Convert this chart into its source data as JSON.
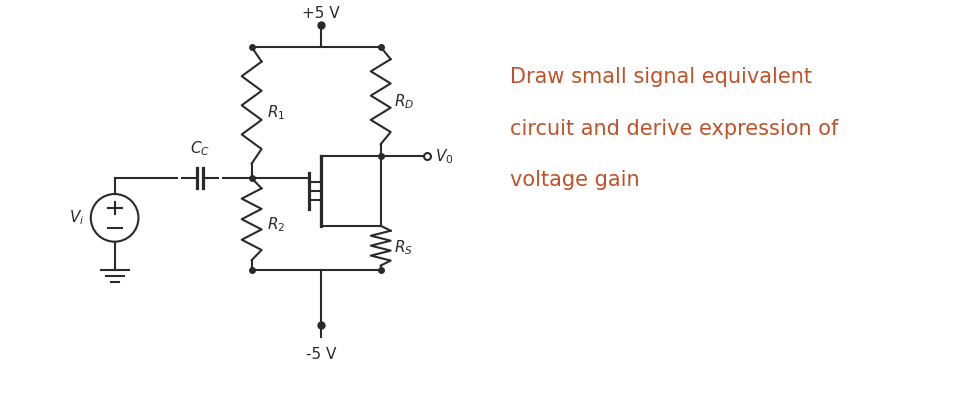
{
  "bg_color": "#ffffff",
  "line_color": "#1a1a1a",
  "text_color": "#c0522a",
  "circuit_color": "#2a2a2a",
  "question_text": [
    "Draw small signal equivalent",
    "circuit and derive expression of",
    "voltage gain"
  ],
  "question_fontsize": 15
}
